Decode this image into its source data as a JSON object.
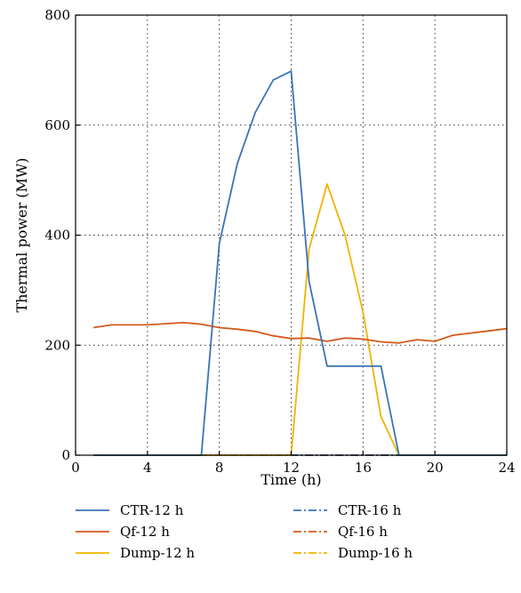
{
  "chart_data": {
    "type": "line",
    "xlabel": "Time (h)",
    "ylabel": "Thermal power (MW)",
    "xlim": [
      0,
      24
    ],
    "ylim": [
      0,
      800
    ],
    "xticks": [
      0,
      4,
      8,
      12,
      16,
      20,
      24
    ],
    "yticks": [
      0,
      200,
      400,
      600,
      800
    ],
    "grid": true,
    "legend_position": "bottom",
    "series": [
      {
        "name": "CTR-12 h",
        "color": "#3b73b9",
        "dash": "solid",
        "x": [
          1,
          7,
          8,
          9,
          10,
          11,
          12,
          13,
          14,
          15,
          16,
          17,
          18,
          19,
          20,
          21,
          22,
          23,
          24
        ],
        "y": [
          0,
          0,
          385,
          530,
          623,
          682,
          698,
          315,
          162,
          162,
          162,
          162,
          0,
          0,
          0,
          0,
          0,
          0,
          0
        ]
      },
      {
        "name": "Qf-12 h",
        "color": "#d45a1a",
        "dash": "solid",
        "x": [
          1,
          2,
          3,
          4,
          5,
          6,
          7,
          8,
          9,
          10,
          11,
          12,
          13,
          14,
          15,
          16,
          17,
          18,
          19,
          20,
          21,
          22,
          23,
          24
        ],
        "y": [
          232,
          237,
          237,
          237,
          239,
          241,
          238,
          232,
          229,
          225,
          217,
          212,
          213,
          207,
          213,
          211,
          206,
          204,
          210,
          207,
          218,
          222,
          226,
          230
        ]
      },
      {
        "name": "Dump-12 h",
        "color": "#f0b400",
        "dash": "solid",
        "x": [
          1,
          12,
          13,
          14,
          15,
          16,
          17,
          18,
          19,
          20,
          21,
          22,
          23,
          24
        ],
        "y": [
          0,
          0,
          375,
          493,
          400,
          260,
          70,
          0,
          0,
          0,
          0,
          0,
          0,
          0
        ]
      },
      {
        "name": "CTR-16 h",
        "color": "#3b73b9",
        "dash": "dashdot",
        "x": [
          1,
          24
        ],
        "y": [
          0,
          0
        ]
      },
      {
        "name": "Qf-16 h",
        "color": "#d45a1a",
        "dash": "dashdot",
        "x": [
          1,
          24
        ],
        "y": [
          0,
          0
        ]
      },
      {
        "name": "Dump-16 h",
        "color": "#f0b400",
        "dash": "dashdot",
        "x": [
          1,
          24
        ],
        "y": [
          0,
          0
        ]
      }
    ]
  }
}
